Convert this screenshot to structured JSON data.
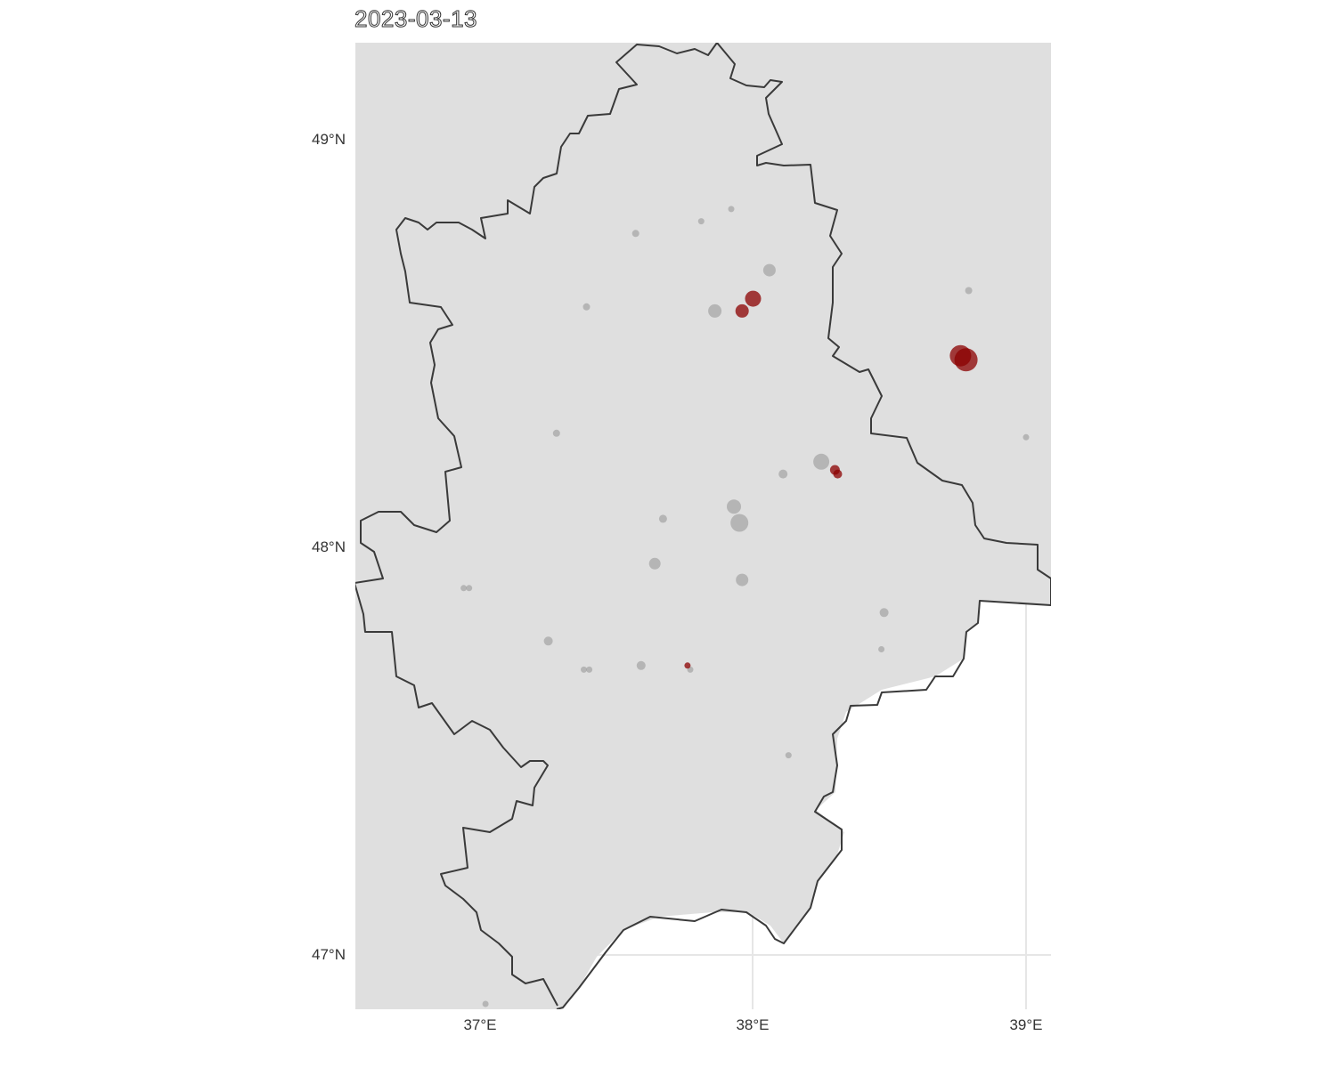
{
  "title": "2023-03-13",
  "axes": {
    "lat_labels": [
      "49°N",
      "48°N",
      "47°N"
    ],
    "lon_labels": [
      "37°E",
      "38°E",
      "39°E"
    ]
  },
  "colors": {
    "panel_background": "#dfdfdf",
    "gridline": "#e6e6e6",
    "border": "#3a3a3a",
    "point_gray": "#9a9a9a",
    "point_red": "#8b0000"
  },
  "chart_data": {
    "type": "scatter",
    "map_region": "Donetsk Oblast",
    "xlim": [
      36.54,
      39.09
    ],
    "ylim": [
      46.87,
      49.24
    ],
    "x_ticks": [
      37,
      38,
      39
    ],
    "y_ticks": [
      47,
      48,
      49
    ],
    "xlabel": "",
    "ylabel": "",
    "series": [
      {
        "category": "gray",
        "points": [
          {
            "lon": 37.57,
            "lat": 48.77,
            "r": 4
          },
          {
            "lon": 37.81,
            "lat": 48.8,
            "r": 3.5
          },
          {
            "lon": 37.92,
            "lat": 48.83,
            "r": 3.5
          },
          {
            "lon": 38.06,
            "lat": 48.68,
            "r": 7
          },
          {
            "lon": 38.79,
            "lat": 48.63,
            "r": 4
          },
          {
            "lon": 37.39,
            "lat": 48.59,
            "r": 4
          },
          {
            "lon": 37.86,
            "lat": 48.58,
            "r": 7.5
          },
          {
            "lon": 37.28,
            "lat": 48.28,
            "r": 4
          },
          {
            "lon": 38.25,
            "lat": 48.21,
            "r": 9
          },
          {
            "lon": 38.11,
            "lat": 48.18,
            "r": 5
          },
          {
            "lon": 39.0,
            "lat": 48.27,
            "r": 3.5
          },
          {
            "lon": 37.93,
            "lat": 48.1,
            "r": 8
          },
          {
            "lon": 37.95,
            "lat": 48.06,
            "r": 10
          },
          {
            "lon": 37.67,
            "lat": 48.07,
            "r": 4.5
          },
          {
            "lon": 37.64,
            "lat": 47.96,
            "r": 6.5
          },
          {
            "lon": 37.96,
            "lat": 47.92,
            "r": 7
          },
          {
            "lon": 36.94,
            "lat": 47.9,
            "r": 3.5
          },
          {
            "lon": 36.96,
            "lat": 47.9,
            "r": 3.5
          },
          {
            "lon": 38.48,
            "lat": 47.84,
            "r": 5
          },
          {
            "lon": 37.25,
            "lat": 47.77,
            "r": 5
          },
          {
            "lon": 38.47,
            "lat": 47.75,
            "r": 3.5
          },
          {
            "lon": 37.38,
            "lat": 47.7,
            "r": 3.5
          },
          {
            "lon": 37.4,
            "lat": 47.7,
            "r": 3.5
          },
          {
            "lon": 37.59,
            "lat": 47.71,
            "r": 5
          },
          {
            "lon": 37.77,
            "lat": 47.7,
            "r": 3.5
          },
          {
            "lon": 38.13,
            "lat": 47.49,
            "r": 3.5
          },
          {
            "lon": 37.02,
            "lat": 46.88,
            "r": 3.5
          }
        ]
      },
      {
        "category": "red",
        "points": [
          {
            "lon": 38.0,
            "lat": 48.61,
            "r": 9
          },
          {
            "lon": 37.96,
            "lat": 48.58,
            "r": 7.5
          },
          {
            "lon": 38.76,
            "lat": 48.47,
            "r": 12
          },
          {
            "lon": 38.78,
            "lat": 48.46,
            "r": 13
          },
          {
            "lon": 38.3,
            "lat": 48.19,
            "r": 5.5
          },
          {
            "lon": 38.31,
            "lat": 48.18,
            "r": 5
          },
          {
            "lon": 37.76,
            "lat": 47.71,
            "r": 3.5
          }
        ]
      }
    ]
  }
}
